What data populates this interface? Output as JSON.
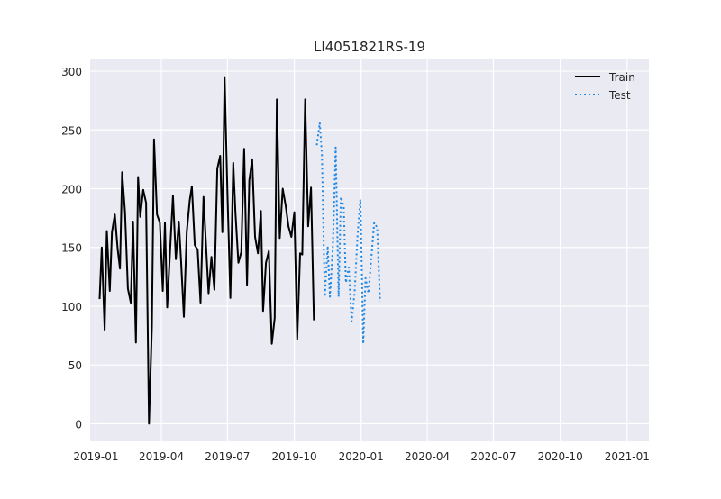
{
  "chart_data": {
    "type": "line",
    "title": "LI4051821RS-19",
    "xlabel": "",
    "ylabel": "",
    "x_ticks": [
      "2019-01",
      "2019-04",
      "2019-07",
      "2019-10",
      "2020-01",
      "2020-04",
      "2020-07",
      "2020-10",
      "2021-01"
    ],
    "y_ticks": [
      0,
      50,
      100,
      150,
      200,
      250,
      300
    ],
    "xlim": [
      "2018-12-24",
      "2021-01-31"
    ],
    "ylim": [
      -15,
      310
    ],
    "grid": true,
    "legend_position": "top-right",
    "series": [
      {
        "name": "Train",
        "color": "#000000",
        "style": "solid",
        "points": [
          [
            "2019-01-06",
            106
          ],
          [
            "2019-01-09",
            150
          ],
          [
            "2019-01-13",
            80
          ],
          [
            "2019-01-16",
            164
          ],
          [
            "2019-01-20",
            113
          ],
          [
            "2019-01-23",
            163
          ],
          [
            "2019-01-27",
            178
          ],
          [
            "2019-01-31",
            148
          ],
          [
            "2019-02-03",
            132
          ],
          [
            "2019-02-06",
            214
          ],
          [
            "2019-02-10",
            180
          ],
          [
            "2019-02-14",
            115
          ],
          [
            "2019-02-18",
            103
          ],
          [
            "2019-02-21",
            172
          ],
          [
            "2019-02-25",
            69
          ],
          [
            "2019-02-28",
            210
          ],
          [
            "2019-03-03",
            176
          ],
          [
            "2019-03-07",
            199
          ],
          [
            "2019-03-11",
            188
          ],
          [
            "2019-03-15",
            0
          ],
          [
            "2019-03-19",
            82
          ],
          [
            "2019-03-22",
            242
          ],
          [
            "2019-03-26",
            178
          ],
          [
            "2019-03-30",
            171
          ],
          [
            "2019-04-03",
            113
          ],
          [
            "2019-04-06",
            171
          ],
          [
            "2019-04-09",
            99
          ],
          [
            "2019-04-13",
            147
          ],
          [
            "2019-04-17",
            194
          ],
          [
            "2019-04-21",
            140
          ],
          [
            "2019-04-25",
            172
          ],
          [
            "2019-04-28",
            140
          ],
          [
            "2019-05-02",
            91
          ],
          [
            "2019-05-06",
            163
          ],
          [
            "2019-05-10",
            190
          ],
          [
            "2019-05-13",
            202
          ],
          [
            "2019-05-17",
            152
          ],
          [
            "2019-05-21",
            148
          ],
          [
            "2019-05-25",
            103
          ],
          [
            "2019-05-29",
            193
          ],
          [
            "2019-06-02",
            146
          ],
          [
            "2019-06-05",
            111
          ],
          [
            "2019-06-09",
            142
          ],
          [
            "2019-06-13",
            114
          ],
          [
            "2019-06-17",
            217
          ],
          [
            "2019-06-21",
            228
          ],
          [
            "2019-06-24",
            163
          ],
          [
            "2019-06-27",
            295
          ],
          [
            "2019-07-01",
            195
          ],
          [
            "2019-07-05",
            107
          ],
          [
            "2019-07-09",
            222
          ],
          [
            "2019-07-12",
            180
          ],
          [
            "2019-07-16",
            137
          ],
          [
            "2019-07-20",
            146
          ],
          [
            "2019-07-24",
            234
          ],
          [
            "2019-07-28",
            118
          ],
          [
            "2019-07-31",
            207
          ],
          [
            "2019-08-04",
            225
          ],
          [
            "2019-08-08",
            159
          ],
          [
            "2019-08-12",
            145
          ],
          [
            "2019-08-16",
            181
          ],
          [
            "2019-08-19",
            96
          ],
          [
            "2019-08-23",
            137
          ],
          [
            "2019-08-27",
            147
          ],
          [
            "2019-08-31",
            68
          ],
          [
            "2019-09-04",
            90
          ],
          [
            "2019-09-07",
            276
          ],
          [
            "2019-09-11",
            158
          ],
          [
            "2019-09-15",
            200
          ],
          [
            "2019-09-19",
            186
          ],
          [
            "2019-09-23",
            168
          ],
          [
            "2019-09-27",
            159
          ],
          [
            "2019-10-01",
            180
          ],
          [
            "2019-10-05",
            72
          ],
          [
            "2019-10-09",
            145
          ],
          [
            "2019-10-12",
            144
          ],
          [
            "2019-10-16",
            276
          ],
          [
            "2019-10-20",
            168
          ],
          [
            "2019-10-24",
            201
          ],
          [
            "2019-10-28",
            88
          ]
        ]
      },
      {
        "name": "Test",
        "color": "#1e88e5",
        "style": "dotted",
        "points": [
          [
            "2019-11-01",
            237
          ],
          [
            "2019-11-05",
            256
          ],
          [
            "2019-11-08",
            229
          ],
          [
            "2019-11-12",
            108
          ],
          [
            "2019-11-16",
            151
          ],
          [
            "2019-11-19",
            108
          ],
          [
            "2019-11-23",
            150
          ],
          [
            "2019-11-27",
            235
          ],
          [
            "2019-12-01",
            108
          ],
          [
            "2019-12-04",
            193
          ],
          [
            "2019-12-08",
            185
          ],
          [
            "2019-12-11",
            120
          ],
          [
            "2019-12-15",
            133
          ],
          [
            "2019-12-19",
            87
          ],
          [
            "2019-12-23",
            112
          ],
          [
            "2019-12-27",
            160
          ],
          [
            "2019-12-31",
            191
          ],
          [
            "2020-01-04",
            68
          ],
          [
            "2020-01-07",
            124
          ],
          [
            "2020-01-11",
            111
          ],
          [
            "2020-01-15",
            141
          ],
          [
            "2020-01-19",
            171
          ],
          [
            "2020-01-23",
            167
          ],
          [
            "2020-01-27",
            104
          ]
        ]
      }
    ]
  }
}
